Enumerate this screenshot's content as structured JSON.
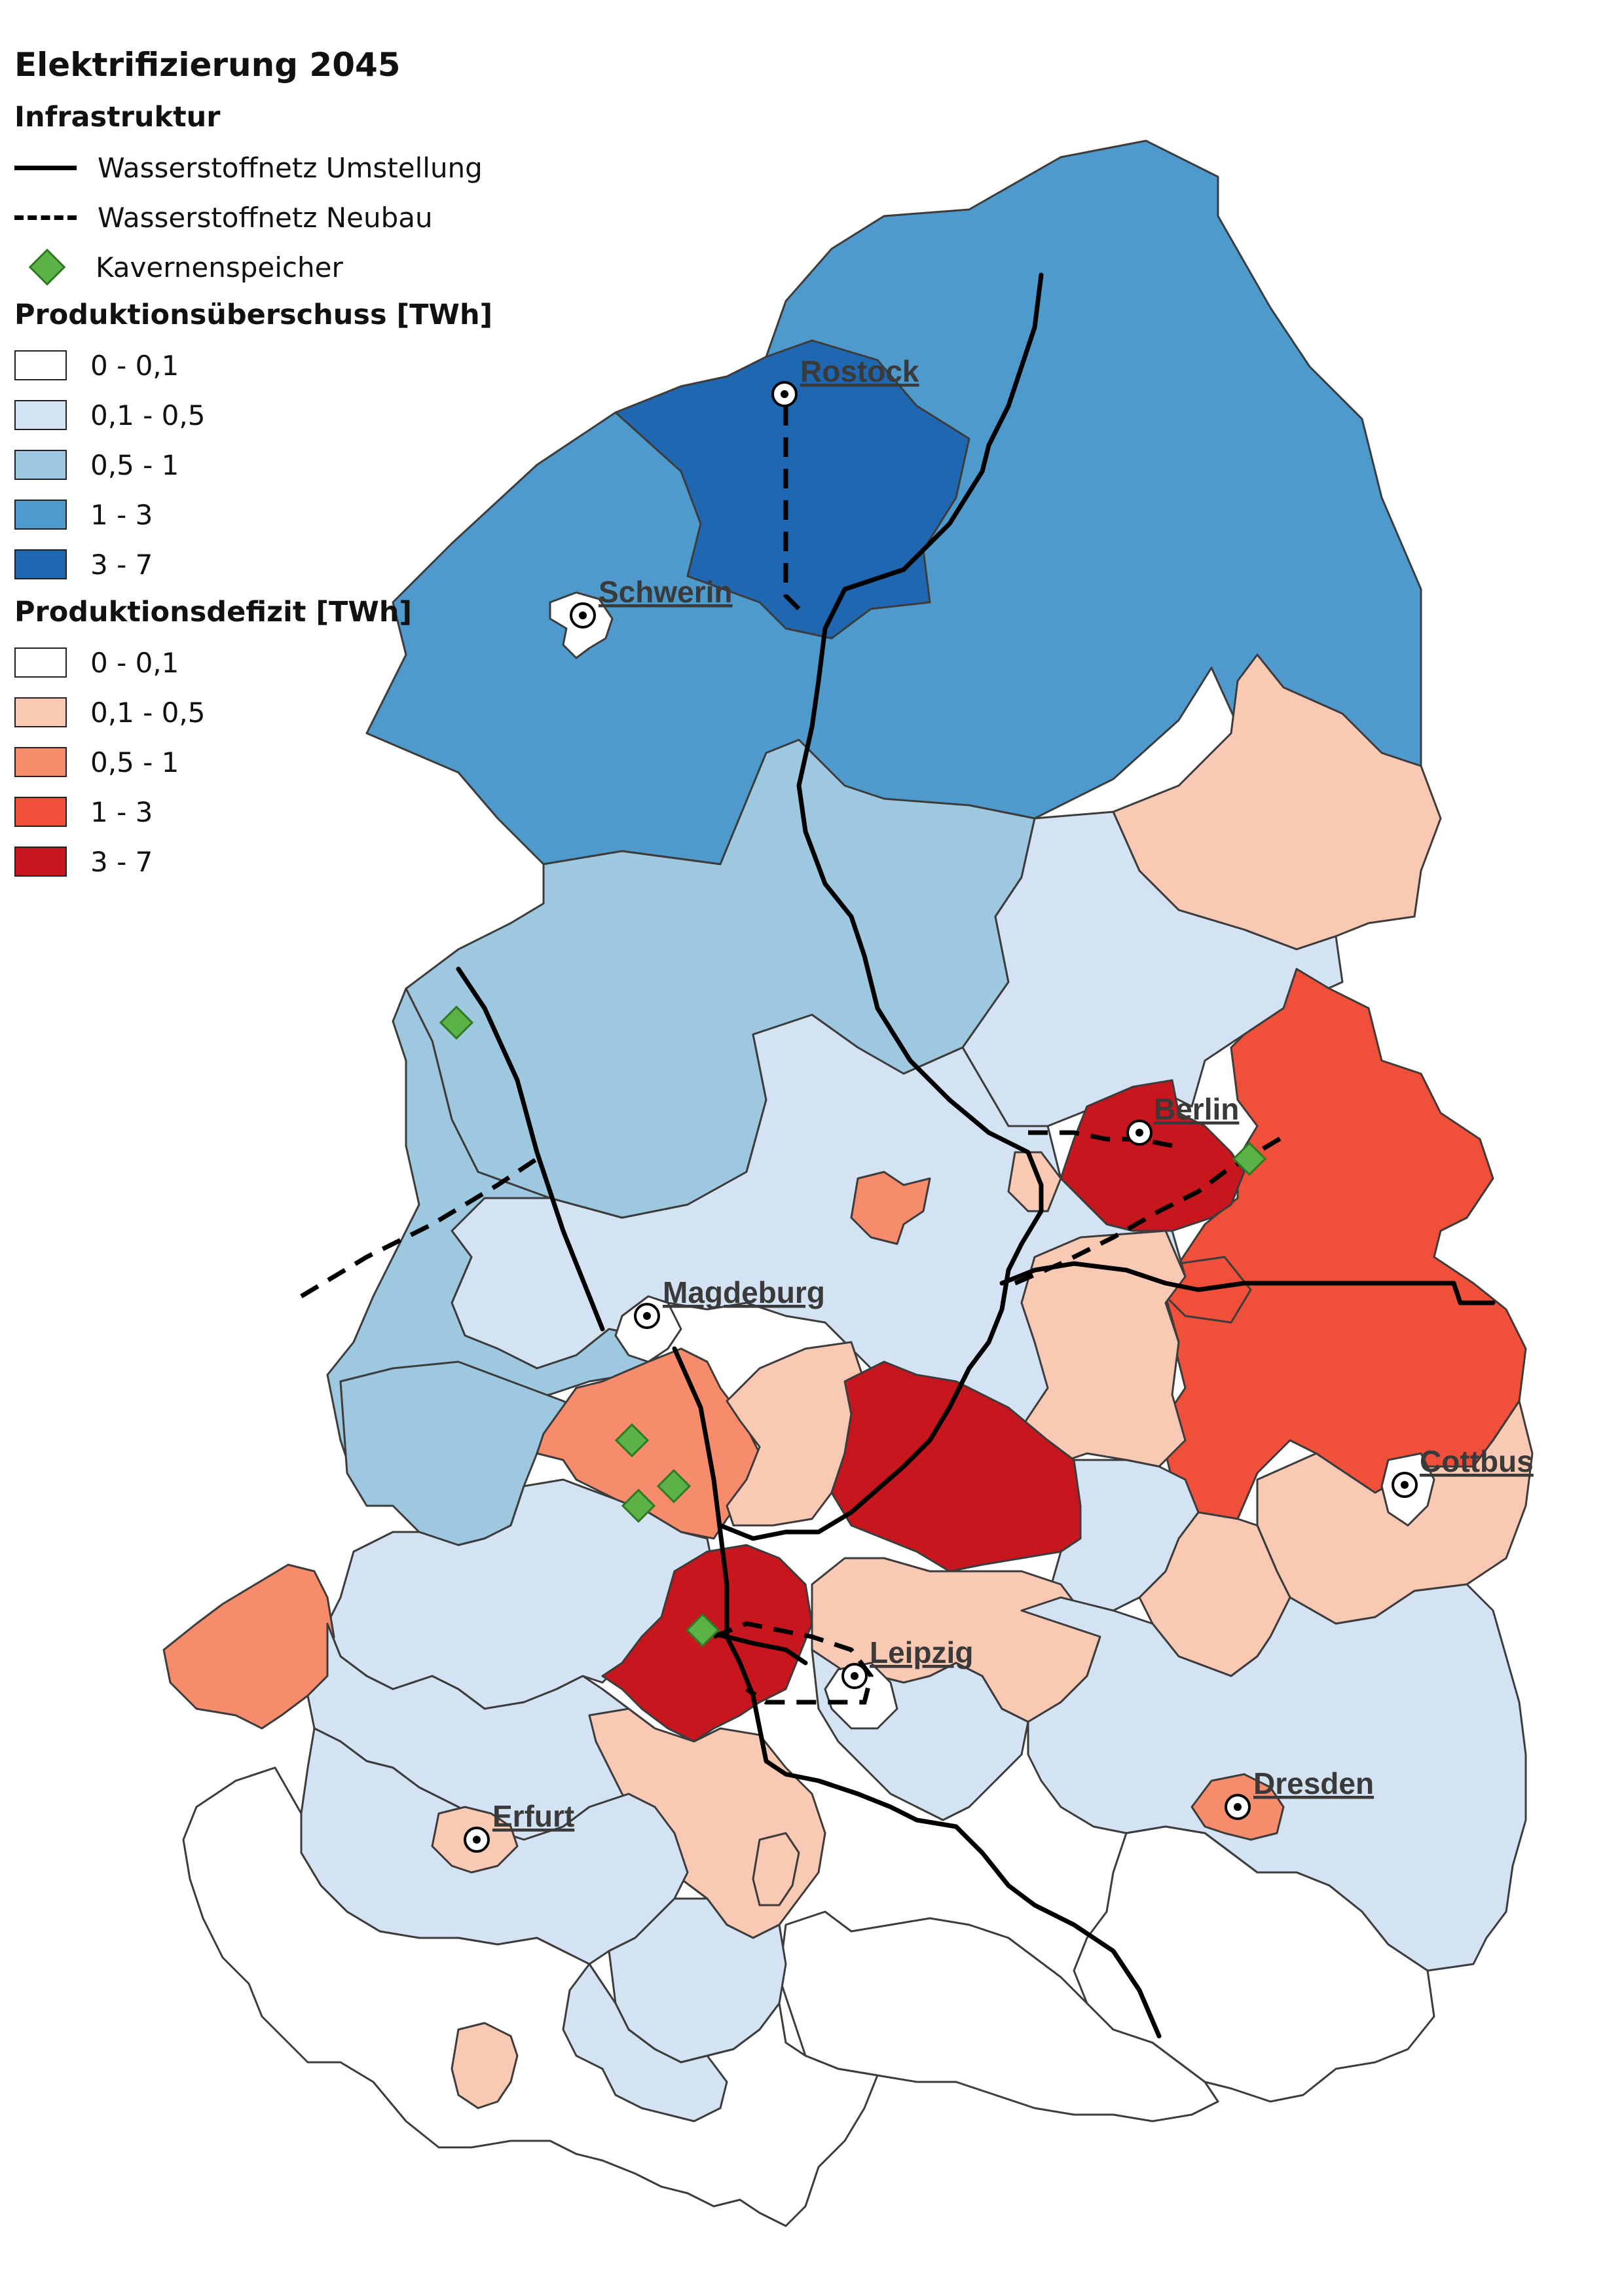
{
  "title": "Elektrifizierung 2045",
  "infrastructure": {
    "heading": "Infrastruktur",
    "solid_line": "Wasserstoffnetz Umstellung",
    "dashed_line": "Wasserstoffnetz Neubau",
    "storage": "Kavernenspeicher"
  },
  "surplus": {
    "heading": "Produktionsüberschuss [TWh]",
    "classes": [
      {
        "label": "0 - 0,1",
        "color": "#ffffff"
      },
      {
        "label": "0,1 - 0,5",
        "color": "#d4e3f3"
      },
      {
        "label": "0,5 - 1",
        "color": "#9ec8e0"
      },
      {
        "label": "1 - 3",
        "color": "#4f9acd"
      },
      {
        "label": "3 - 7",
        "color": "#1f67b0"
      }
    ]
  },
  "deficit": {
    "heading": "Produktionsdefizit [TWh]",
    "classes": [
      {
        "label": "0 - 0,1",
        "color": "#ffffff"
      },
      {
        "label": "0,1 - 0,5",
        "color": "#f9c9b3"
      },
      {
        "label": "0,5 - 1",
        "color": "#f68c6c"
      },
      {
        "label": "1 - 3",
        "color": "#f0503a"
      },
      {
        "label": "3 - 7",
        "color": "#c8161e"
      }
    ]
  },
  "cities": {
    "rostock": "Rostock",
    "schwerin": "Schwerin",
    "berlin": "Berlin",
    "magdeburg": "Magdeburg",
    "cottbus": "Cottbus",
    "leipzig": "Leipzig",
    "dresden": "Dresden",
    "erfurt": "Erfurt"
  }
}
